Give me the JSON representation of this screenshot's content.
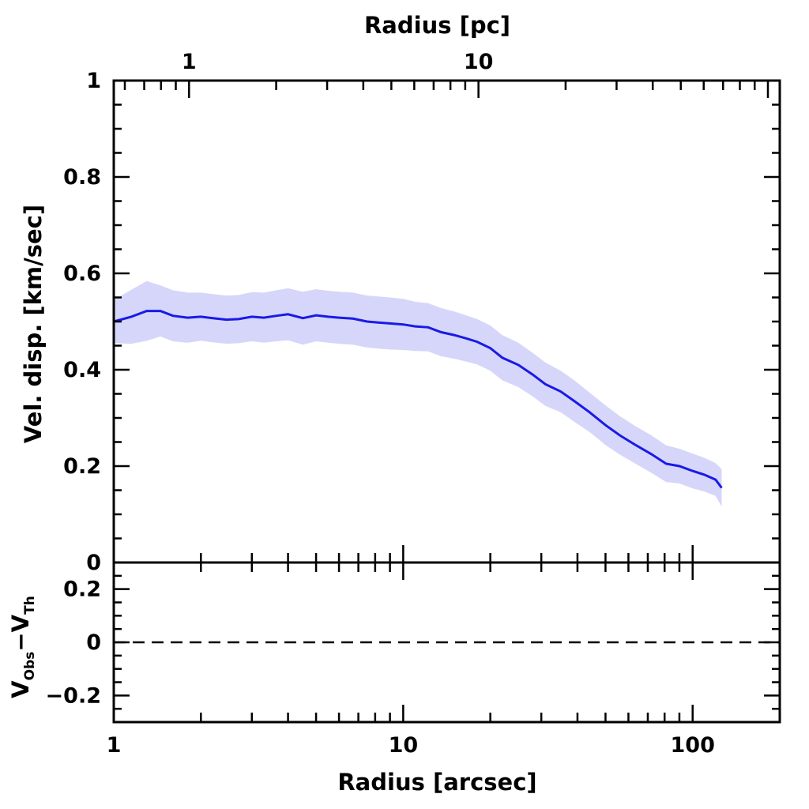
{
  "chart_data": [
    {
      "type": "line",
      "panel": "top",
      "xlabel_top": "Radius [pc]",
      "ylabel": "Vel. disp. [km/sec]",
      "x_scale": "log",
      "xlim": [
        1,
        200
      ],
      "ylim": [
        0,
        1
      ],
      "y_ticks": [
        {
          "value": 0,
          "label": "0"
        },
        {
          "value": 0.2,
          "label": "0.2"
        },
        {
          "value": 0.4,
          "label": "0.4"
        },
        {
          "value": 0.6,
          "label": "0.6"
        },
        {
          "value": 0.8,
          "label": "0.8"
        },
        {
          "value": 1,
          "label": "1"
        }
      ],
      "x_top_ticks": [
        {
          "value": 1.82,
          "label": "1"
        },
        {
          "value": 18.2,
          "label": "10"
        }
      ],
      "colors": {
        "line": "#1a1ae6",
        "band": "#d6d6fa"
      },
      "series": [
        {
          "x": [
            1,
            1.15,
            1.3,
            1.45,
            1.6,
            1.8,
            2.0,
            2.2,
            2.45,
            2.7,
            3.0,
            3.3,
            3.65,
            4.0,
            4.5,
            5.0,
            5.5,
            6.0,
            6.7,
            7.5,
            8.2,
            9.0,
            10.0,
            11.0,
            12.2,
            13.5,
            15.0,
            16.5,
            18.0,
            20.0,
            22.0,
            25.0,
            28.0,
            31.0,
            35.0,
            39.0,
            44.0,
            50.0,
            56.0,
            63.0,
            72.0,
            81.0,
            90.0,
            100.0,
            110.0,
            120.0,
            126.0
          ],
          "y": [
            0.5,
            0.51,
            0.522,
            0.522,
            0.512,
            0.508,
            0.51,
            0.507,
            0.504,
            0.505,
            0.51,
            0.508,
            0.512,
            0.515,
            0.507,
            0.513,
            0.51,
            0.508,
            0.506,
            0.5,
            0.498,
            0.496,
            0.494,
            0.49,
            0.488,
            0.478,
            0.472,
            0.465,
            0.458,
            0.445,
            0.425,
            0.41,
            0.39,
            0.37,
            0.355,
            0.335,
            0.312,
            0.285,
            0.264,
            0.245,
            0.225,
            0.205,
            0.2,
            0.19,
            0.182,
            0.172,
            0.155
          ],
          "y_upper": [
            0.545,
            0.566,
            0.584,
            0.575,
            0.565,
            0.56,
            0.56,
            0.557,
            0.554,
            0.555,
            0.561,
            0.56,
            0.565,
            0.569,
            0.562,
            0.567,
            0.564,
            0.562,
            0.56,
            0.554,
            0.552,
            0.55,
            0.547,
            0.541,
            0.538,
            0.528,
            0.521,
            0.513,
            0.505,
            0.492,
            0.472,
            0.456,
            0.435,
            0.415,
            0.398,
            0.378,
            0.353,
            0.326,
            0.304,
            0.284,
            0.264,
            0.243,
            0.236,
            0.226,
            0.217,
            0.206,
            0.194
          ],
          "y_lower": [
            0.455,
            0.454,
            0.46,
            0.469,
            0.459,
            0.456,
            0.46,
            0.457,
            0.454,
            0.455,
            0.459,
            0.456,
            0.459,
            0.461,
            0.452,
            0.459,
            0.456,
            0.454,
            0.452,
            0.446,
            0.444,
            0.442,
            0.441,
            0.439,
            0.438,
            0.428,
            0.423,
            0.417,
            0.411,
            0.398,
            0.378,
            0.364,
            0.345,
            0.325,
            0.312,
            0.292,
            0.271,
            0.244,
            0.224,
            0.206,
            0.186,
            0.167,
            0.164,
            0.154,
            0.147,
            0.138,
            0.116
          ]
        }
      ]
    },
    {
      "type": "line",
      "panel": "bottom",
      "xlabel": "Radius [arcsec]",
      "ylabel_main": "V",
      "ylabel_sub1": "Obs",
      "ylabel_dash": "−V",
      "ylabel_sub2": "Th",
      "x_scale": "log",
      "xlim": [
        1,
        200
      ],
      "ylim": [
        -0.3,
        0.3
      ],
      "x_ticks": [
        {
          "value": 1,
          "label": "1"
        },
        {
          "value": 10,
          "label": "10"
        },
        {
          "value": 100,
          "label": "100"
        }
      ],
      "y_ticks": [
        {
          "value": -0.2,
          "label": "−0.2"
        },
        {
          "value": 0,
          "label": "0"
        },
        {
          "value": 0.2,
          "label": "0.2"
        }
      ],
      "reference_line": {
        "y": 0,
        "style": "dashed"
      }
    }
  ]
}
